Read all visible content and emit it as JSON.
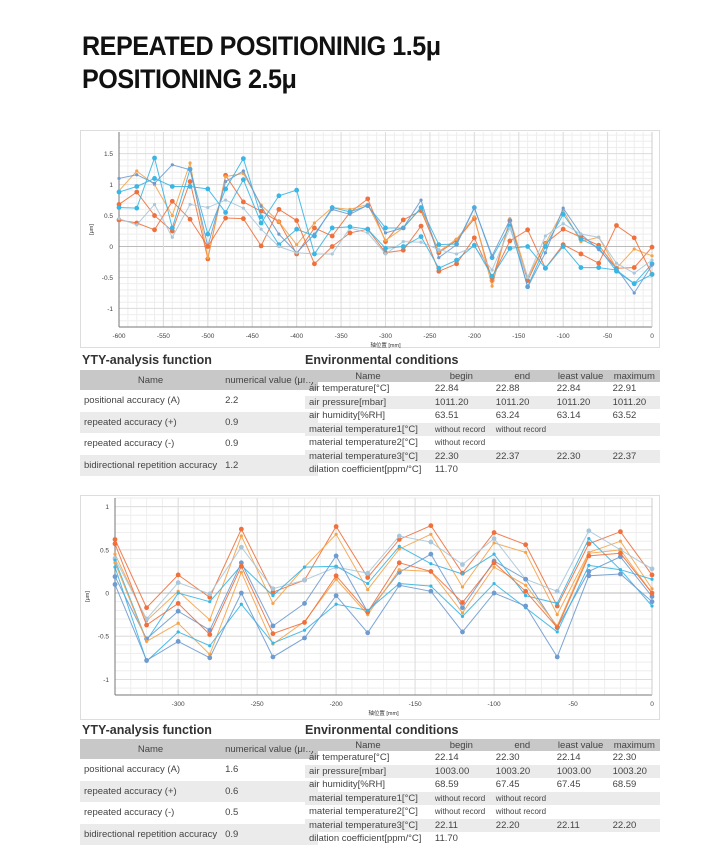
{
  "title": {
    "line1": "REPEATED POSITIONINIG 1.5μ",
    "line2": "POSITIONING 2.5μ"
  },
  "colors": {
    "red": "#f0703c",
    "orange": "#f5a348",
    "cyan": "#38b6e6",
    "bluegray": "#6e9bd0",
    "light": "#a9c7da"
  },
  "chart_data": [
    {
      "type": "line",
      "xlabel": "轴位置 [mm]",
      "ylabel": "[μm]",
      "xlim": [
        -600,
        0
      ],
      "ylim": [
        -1.3,
        1.85
      ],
      "grid": true,
      "xticks": [
        -600,
        -550,
        -500,
        -450,
        -400,
        -350,
        -300,
        -250,
        -200,
        -150,
        -100,
        -50,
        0
      ],
      "yticks": [
        -1,
        -0.5,
        0,
        0.5,
        1,
        1.5
      ],
      "x": [
        -600,
        -580,
        -560,
        -540,
        -520,
        -500,
        -480,
        -460,
        -440,
        -420,
        -400,
        -380,
        -360,
        -340,
        -320,
        -300,
        -280,
        -260,
        -240,
        -220,
        -200,
        -180,
        -160,
        -140,
        -120,
        -100,
        -80,
        -60,
        -40,
        -20,
        0
      ],
      "series": [
        {
          "color": "red",
          "values": [
            0.68,
            0.88,
            0.5,
            0.25,
            1.05,
            -0.2,
            1.15,
            0.72,
            0.57,
            0.4,
            -0.12,
            0.3,
            0.17,
            0.55,
            0.77,
            0.08,
            0.43,
            0.58,
            -0.1,
            0.1,
            0.45,
            -0.55,
            0.42,
            -0.55,
            0.05,
            0.28,
            0.15,
            0.02,
            -0.35,
            -0.34,
            -0.01
          ]
        },
        {
          "color": "orange",
          "values": [
            0.9,
            1.22,
            1.0,
            0.5,
            1.35,
            -0.18,
            1.13,
            1.18,
            0.67,
            0.4,
            0.03,
            0.38,
            0.63,
            0.6,
            0.68,
            0.1,
            0.3,
            0.62,
            -0.08,
            0.12,
            0.48,
            -0.64,
            0.45,
            -0.5,
            0.05,
            0.58,
            0.08,
            0.15,
            -0.35,
            -0.04,
            -0.15
          ]
        },
        {
          "color": "cyan",
          "values": [
            0.63,
            0.62,
            1.43,
            0.3,
            1.25,
            0.2,
            0.93,
            1.42,
            0.48,
            0.03,
            0.28,
            0.17,
            0.63,
            0.56,
            0.66,
            0.3,
            0.3,
            0.63,
            0.03,
            0.04,
            0.63,
            -0.18,
            0.33,
            -0.65,
            0.0,
            0.52,
            0.12,
            -0.02,
            -0.4,
            -0.6,
            -0.28
          ]
        },
        {
          "color": "bluegray",
          "values": [
            1.1,
            1.16,
            1.02,
            1.32,
            1.24,
            0.0,
            1.05,
            1.22,
            0.65,
            0.2,
            -0.1,
            0.2,
            0.6,
            0.52,
            0.67,
            0.22,
            0.3,
            0.75,
            -0.18,
            0.03,
            0.62,
            -0.15,
            0.43,
            -0.66,
            -0.1,
            0.62,
            0.2,
            -0.05,
            -0.35,
            -0.75,
            -0.3
          ]
        },
        {
          "color": "red",
          "values": [
            0.43,
            0.38,
            0.27,
            0.73,
            0.44,
            0.0,
            0.46,
            0.45,
            0.01,
            0.6,
            0.42,
            -0.28,
            0.0,
            0.22,
            0.28,
            -0.1,
            -0.06,
            0.33,
            -0.4,
            -0.28,
            0.14,
            -0.5,
            0.09,
            0.27,
            -0.35,
            0.03,
            -0.12,
            -0.27,
            0.34,
            0.14,
            -0.45
          ]
        },
        {
          "color": "light",
          "values": [
            0.45,
            0.35,
            0.68,
            0.15,
            0.68,
            0.63,
            0.75,
            0.62,
            0.28,
            0.0,
            -0.1,
            -0.12,
            -0.12,
            0.3,
            0.22,
            -0.12,
            0.08,
            0.07,
            -0.05,
            -0.12,
            0.0,
            -0.38,
            0.3,
            -0.5,
            0.17,
            0.37,
            0.2,
            0.15,
            -0.27,
            -0.43,
            -0.22
          ]
        },
        {
          "color": "cyan",
          "values": [
            0.88,
            0.97,
            1.1,
            0.97,
            0.97,
            0.93,
            0.55,
            1.08,
            0.38,
            0.82,
            0.91,
            -0.12,
            0.3,
            0.32,
            0.28,
            -0.03,
            0.0,
            0.16,
            -0.35,
            -0.22,
            0.02,
            -0.48,
            -0.03,
            0.0,
            -0.35,
            0.0,
            -0.34,
            -0.34,
            -0.38,
            -0.6,
            -0.45
          ]
        }
      ]
    },
    {
      "type": "line",
      "xlabel": "轴位置 [mm]",
      "ylabel": "[μm]",
      "xlim": [
        -340,
        0
      ],
      "ylim": [
        -1.18,
        1.1
      ],
      "grid": true,
      "xticks": [
        -300,
        -250,
        -200,
        -150,
        -100,
        -50,
        0
      ],
      "yticks": [
        -1,
        -0.5,
        0,
        0.5,
        1
      ],
      "x": [
        -340,
        -320,
        -300,
        -280,
        -260,
        -240,
        -220,
        -200,
        -180,
        -160,
        -140,
        -120,
        -100,
        -80,
        -60,
        -40,
        -20,
        0
      ],
      "series": [
        {
          "color": "red",
          "values": [
            0.62,
            -0.17,
            0.21,
            -0.05,
            0.74,
            0.01,
            0.15,
            0.77,
            0.18,
            0.62,
            0.78,
            0.23,
            0.7,
            0.56,
            -0.15,
            0.57,
            0.71,
            0.21
          ]
        },
        {
          "color": "orange",
          "values": [
            0.45,
            -0.32,
            0.02,
            -0.31,
            0.66,
            -0.12,
            0.3,
            0.68,
            0.04,
            0.51,
            0.68,
            0.07,
            0.58,
            0.47,
            -0.25,
            0.47,
            0.6,
            0.05
          ]
        },
        {
          "color": "light",
          "values": [
            0.4,
            -0.3,
            0.12,
            -0.01,
            0.53,
            0.05,
            0.15,
            0.3,
            0.23,
            0.66,
            0.59,
            0.33,
            0.63,
            0.16,
            0.02,
            0.72,
            0.5,
            0.28
          ]
        },
        {
          "color": "cyan",
          "values": [
            0.38,
            -0.55,
            0.0,
            -0.1,
            0.32,
            -0.03,
            0.3,
            0.31,
            0.11,
            0.54,
            0.34,
            0.22,
            0.45,
            -0.03,
            -0.12,
            0.63,
            0.27,
            0.16
          ]
        },
        {
          "color": "bluegray",
          "values": [
            0.19,
            -0.53,
            -0.21,
            -0.43,
            0.35,
            -0.38,
            -0.12,
            0.43,
            -0.22,
            0.24,
            0.45,
            -0.17,
            0.37,
            0.16,
            -0.4,
            0.25,
            0.42,
            -0.04
          ]
        },
        {
          "color": "orange",
          "values": [
            0.35,
            -0.56,
            -0.35,
            -0.71,
            0.24,
            -0.59,
            -0.33,
            0.16,
            -0.25,
            0.27,
            0.25,
            -0.23,
            0.3,
            0.09,
            -0.38,
            0.46,
            0.5,
            0.0
          ]
        },
        {
          "color": "red",
          "values": [
            0.57,
            -0.37,
            -0.12,
            -0.48,
            0.31,
            -0.47,
            -0.34,
            0.2,
            -0.22,
            0.35,
            0.25,
            -0.11,
            0.35,
            0.02,
            -0.4,
            0.43,
            0.46,
            0.0
          ]
        },
        {
          "color": "cyan",
          "values": [
            0.3,
            -0.79,
            -0.45,
            -0.61,
            -0.13,
            -0.58,
            -0.43,
            -0.13,
            -0.2,
            0.11,
            0.08,
            -0.27,
            0.11,
            -0.17,
            -0.45,
            0.32,
            0.27,
            -0.15
          ]
        },
        {
          "color": "bluegray",
          "values": [
            0.1,
            -0.78,
            -0.56,
            -0.75,
            0.0,
            -0.74,
            -0.52,
            -0.03,
            -0.46,
            0.09,
            0.02,
            -0.45,
            0.0,
            -0.15,
            -0.74,
            0.2,
            0.22,
            -0.1
          ]
        }
      ]
    }
  ],
  "sections": [
    {
      "yty_title": "YTY-analysis function",
      "yty_head": [
        "Name",
        "numerical value (μm)"
      ],
      "yty_rows": [
        [
          "positional accuracy (A)",
          "2.2"
        ],
        [
          "repeated accuracy (+)",
          "0.9"
        ],
        [
          "repeated accuracy (-)",
          "0.9"
        ],
        [
          "bidirectional repetition accuracy",
          "1.2"
        ]
      ],
      "env_title": "Environmental conditions",
      "env_head": [
        "Name",
        "begin",
        "end",
        "least value",
        "maximum"
      ],
      "env_rows": [
        [
          "air temperature[°C]",
          "22.84",
          "22.88",
          "22.84",
          "22.91"
        ],
        [
          "air pressure[mbar]",
          "1011.20",
          "1011.20",
          "1011.20",
          "1011.20"
        ],
        [
          "air humidity[%RH]",
          "63.51",
          "63.24",
          "63.14",
          "63.52"
        ],
        [
          "material temperature1[°C]",
          "without record",
          "without record",
          "",
          ""
        ],
        [
          "material temperature2[°C]",
          "without record",
          "",
          "",
          ""
        ],
        [
          "material temperature3[°C]",
          "22.30",
          "22.37",
          "22.30",
          "22.37"
        ],
        [
          "dilation coefficient[ppm/°C]",
          "11.70",
          "",
          "",
          ""
        ]
      ]
    },
    {
      "yty_title": "YTY-analysis function",
      "yty_head": [
        "Name",
        "numerical value (μm)"
      ],
      "yty_rows": [
        [
          "positional accuracy (A)",
          "1.6"
        ],
        [
          "repeated accuracy (+)",
          "0.6"
        ],
        [
          "repeated accuracy (-)",
          "0.5"
        ],
        [
          "bidirectional repetition accuracy",
          "0.9"
        ]
      ],
      "env_title": "Environmental conditions",
      "env_head": [
        "Name",
        "begin",
        "end",
        "least value",
        "maximum"
      ],
      "env_rows": [
        [
          "air temperature[°C]",
          "22.14",
          "22.30",
          "22.14",
          "22.30"
        ],
        [
          "air pressure[mbar]",
          "1003.00",
          "1003.20",
          "1003.00",
          "1003.20"
        ],
        [
          "air humidity[%RH]",
          "68.59",
          "67.45",
          "67.45",
          "68.59"
        ],
        [
          "material temperature1[°C]",
          "without record",
          "without record",
          "",
          ""
        ],
        [
          "material temperature2[°C]",
          "without record",
          "without record",
          "",
          ""
        ],
        [
          "material temperature3[°C]",
          "22.11",
          "22.20",
          "22.11",
          "22.20"
        ],
        [
          "dilation coefficient[ppm/°C]",
          "11.70",
          "",
          "",
          ""
        ]
      ]
    }
  ]
}
